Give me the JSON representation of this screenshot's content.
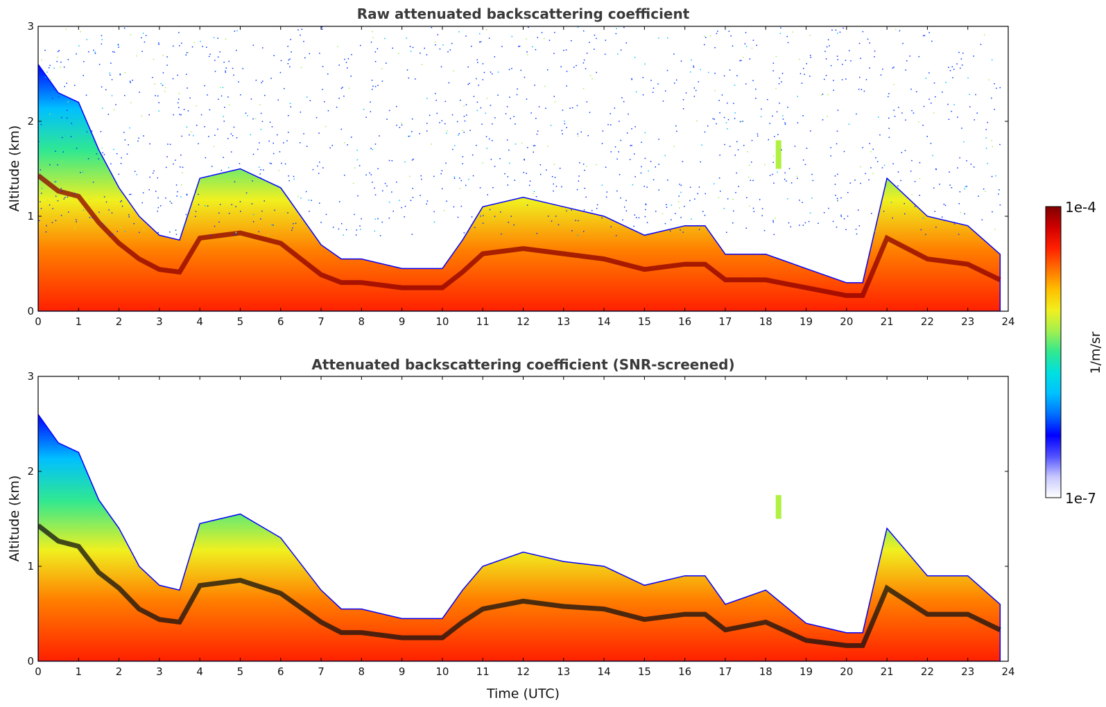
{
  "chart_data": [
    {
      "type": "heatmap",
      "title": "Raw attenuated backscattering coefficient",
      "xlabel": "",
      "ylabel": "Altitude (km)",
      "xlim": [
        0,
        24
      ],
      "ylim": [
        0,
        3
      ],
      "xticks": [
        "0",
        "1",
        "2",
        "3",
        "4",
        "5",
        "6",
        "7",
        "8",
        "9",
        "10",
        "11",
        "12",
        "13",
        "14",
        "15",
        "16",
        "17",
        "18",
        "19",
        "20",
        "21",
        "22",
        "23",
        "24"
      ],
      "yticks": [
        "0",
        "1",
        "2",
        "3"
      ],
      "layer_top_km": {
        "x": [
          0,
          0.5,
          1,
          1.5,
          2,
          2.5,
          3,
          3.5,
          4,
          5,
          6,
          7,
          7.5,
          8,
          9,
          10,
          10.5,
          11,
          12,
          13,
          14,
          15,
          16,
          16.5,
          17,
          18,
          19,
          20,
          20.4,
          21,
          22,
          23,
          23.8
        ],
        "y": [
          2.6,
          2.3,
          2.2,
          1.7,
          1.3,
          1.0,
          0.8,
          0.75,
          1.4,
          1.5,
          1.3,
          0.7,
          0.55,
          0.55,
          0.45,
          0.45,
          0.75,
          1.1,
          1.2,
          1.1,
          1.0,
          0.8,
          0.9,
          0.9,
          0.6,
          0.6,
          0.45,
          0.3,
          0.3,
          1.4,
          1.0,
          0.9,
          0.6
        ]
      },
      "outlier_patch": {
        "x": 18.3,
        "y_range": [
          1.5,
          1.8
        ]
      }
    },
    {
      "type": "heatmap",
      "title": "Attenuated backscattering coefficient (SNR-screened)",
      "xlabel": "Time (UTC)",
      "ylabel": "Altitude (km)",
      "xlim": [
        0,
        24
      ],
      "ylim": [
        0,
        3
      ],
      "xticks": [
        "0",
        "1",
        "2",
        "3",
        "4",
        "5",
        "6",
        "7",
        "8",
        "9",
        "10",
        "11",
        "12",
        "13",
        "14",
        "15",
        "16",
        "17",
        "18",
        "19",
        "20",
        "21",
        "22",
        "23",
        "24"
      ],
      "yticks": [
        "0",
        "1",
        "2",
        "3"
      ],
      "layer_top_km": {
        "x": [
          0,
          0.5,
          1,
          1.5,
          2,
          2.5,
          3,
          3.5,
          4,
          5,
          6,
          7,
          7.5,
          8,
          9,
          10,
          10.5,
          11,
          12,
          13,
          14,
          15,
          16,
          16.5,
          17,
          18,
          19,
          20,
          20.4,
          21,
          22,
          23,
          23.8
        ],
        "y": [
          2.6,
          2.3,
          2.2,
          1.7,
          1.4,
          1.0,
          0.8,
          0.75,
          1.45,
          1.55,
          1.3,
          0.75,
          0.55,
          0.55,
          0.45,
          0.45,
          0.75,
          1.0,
          1.15,
          1.05,
          1.0,
          0.8,
          0.9,
          0.9,
          0.6,
          0.75,
          0.4,
          0.3,
          0.3,
          1.4,
          0.9,
          0.9,
          0.6
        ]
      },
      "outlier_patch": {
        "x": 18.3,
        "y_range": [
          1.5,
          1.75
        ]
      }
    }
  ],
  "colorbar": {
    "top_label": "1e-4",
    "bottom_label": "1e-7",
    "units": "1/m/sr",
    "colors": [
      "#ffffff",
      "#c8c8ff",
      "#5050ff",
      "#0000ff",
      "#0070ff",
      "#00c0ff",
      "#00e0e0",
      "#30e890",
      "#a0f050",
      "#f0f020",
      "#ffc000",
      "#ff7000",
      "#ff2000",
      "#d00000",
      "#800000"
    ]
  }
}
